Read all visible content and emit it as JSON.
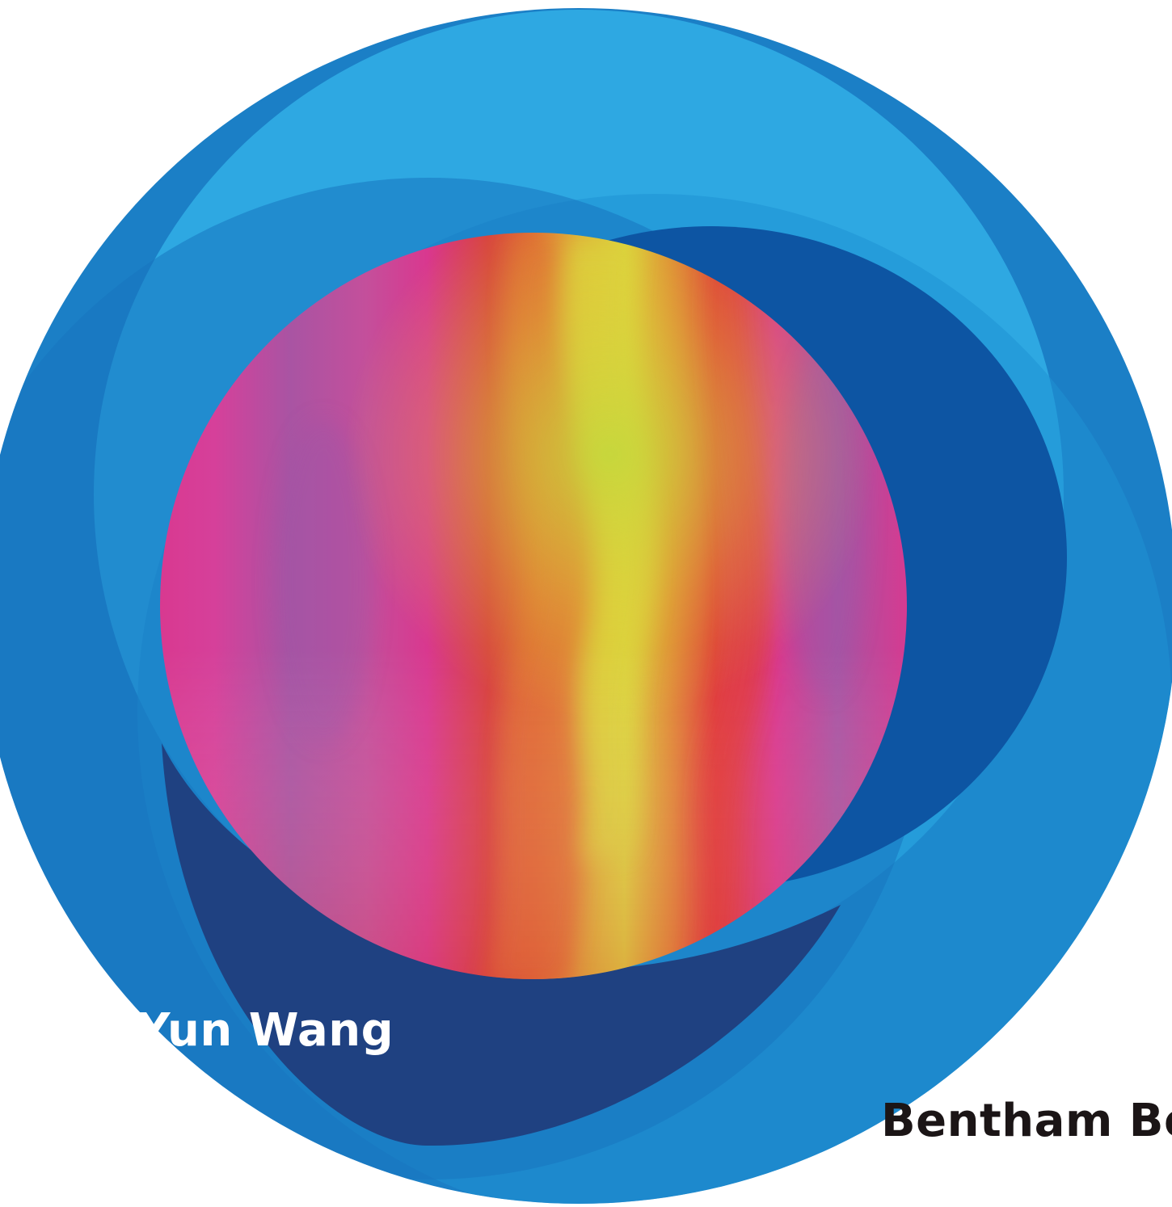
{
  "cover": {
    "author": "Yun Wang",
    "publisher": "Bentham Bo"
  },
  "colors": {
    "background": "#ffffff",
    "ring_outer": "#1b7fc6",
    "ring_light": "#2ea8e2",
    "ring_mid": "#1f91d4",
    "ring_deep": "#0d55a3",
    "ring_navy": "#1f4181",
    "author_text": "#ffffff",
    "publisher_text": "#1b1516",
    "sphere_magenta": "#d9388f",
    "sphere_purple": "#9e55a6",
    "sphere_red": "#e03a3a",
    "sphere_orange": "#e06a34",
    "sphere_yellow": "#dcd23c",
    "sphere_lime": "#c3d83c"
  },
  "icons": {
    "cover_art": "overlapping-circles-with-gradient-sphere"
  }
}
